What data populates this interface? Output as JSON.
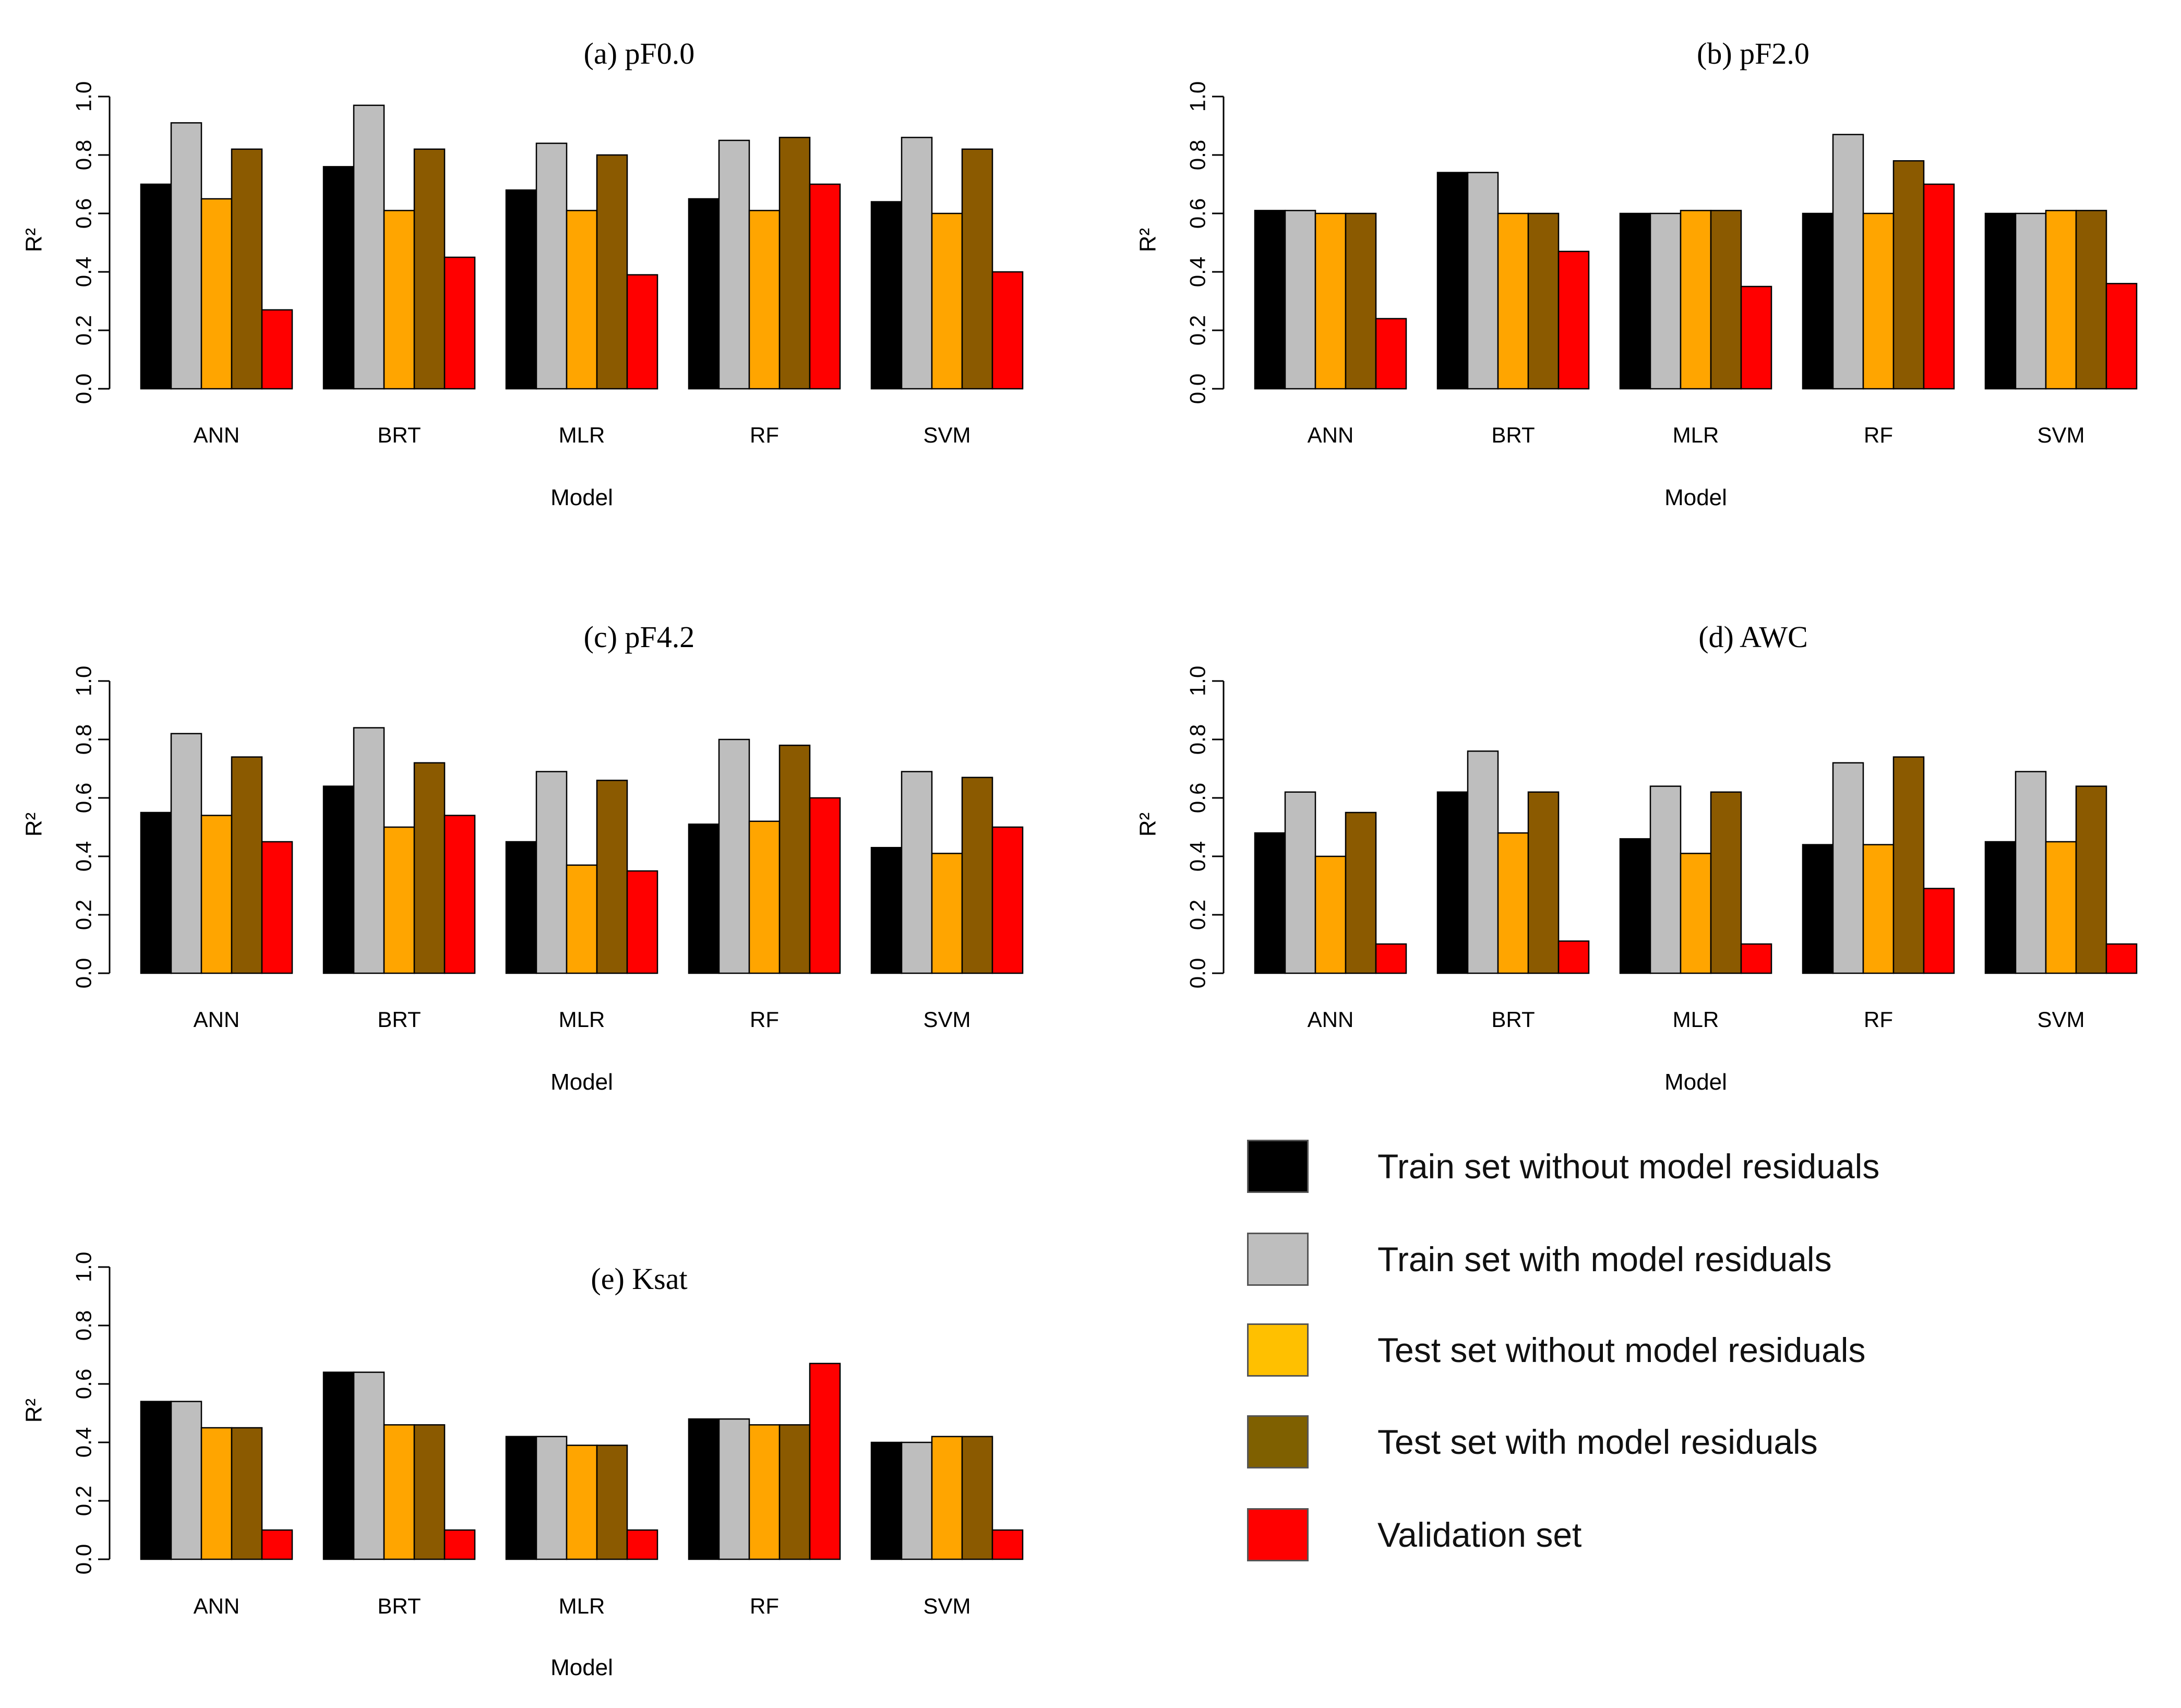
{
  "colors": {
    "train_without": "#000000",
    "train_with": "#bebebe",
    "test_without": "#ffa500",
    "test_with": "#8b5a00",
    "validation": "#ff0000"
  },
  "legend": {
    "items": [
      {
        "label": "Train set without model residuals",
        "color": "#000000"
      },
      {
        "label": "Train set with model residuals",
        "color": "#bebebe"
      },
      {
        "label": "Test set without model residuals",
        "color": "#ffc000"
      },
      {
        "label": "Test set with model residuals",
        "color": "#7f6000"
      },
      {
        "label": "Validation set",
        "color": "#ff0000"
      }
    ]
  },
  "chart_data": [
    {
      "type": "bar",
      "title": "(a)  pF0.0",
      "xlabel": "Model",
      "ylabel": "R²",
      "ylim": [
        0,
        1
      ],
      "yticks": [
        "0.0",
        "0.2",
        "0.4",
        "0.6",
        "0.8",
        "1.0"
      ],
      "categories": [
        "ANN",
        "BRT",
        "MLR",
        "RF",
        "SVM"
      ],
      "series": [
        {
          "name": "Train set without model residuals",
          "values": [
            0.7,
            0.76,
            0.68,
            0.65,
            0.64
          ]
        },
        {
          "name": "Train set with model residuals",
          "values": [
            0.91,
            0.97,
            0.84,
            0.85,
            0.86
          ]
        },
        {
          "name": "Test set without model residuals",
          "values": [
            0.65,
            0.61,
            0.61,
            0.61,
            0.6
          ]
        },
        {
          "name": "Test set with model residuals",
          "values": [
            0.82,
            0.82,
            0.8,
            0.86,
            0.82
          ]
        },
        {
          "name": "Validation set",
          "values": [
            0.27,
            0.45,
            0.39,
            0.7,
            0.4
          ]
        }
      ]
    },
    {
      "type": "bar",
      "title": "(b)  pF2.0",
      "xlabel": "Model",
      "ylabel": "R²",
      "ylim": [
        0,
        1
      ],
      "yticks": [
        "0.0",
        "0.2",
        "0.4",
        "0.6",
        "0.8",
        "1.0"
      ],
      "categories": [
        "ANN",
        "BRT",
        "MLR",
        "RF",
        "SVM"
      ],
      "series": [
        {
          "name": "Train set without model residuals",
          "values": [
            0.61,
            0.74,
            0.6,
            0.6,
            0.6
          ]
        },
        {
          "name": "Train set with model residuals",
          "values": [
            0.61,
            0.74,
            0.6,
            0.87,
            0.6
          ]
        },
        {
          "name": "Test set without model residuals",
          "values": [
            0.6,
            0.6,
            0.61,
            0.6,
            0.61
          ]
        },
        {
          "name": "Test set with model residuals",
          "values": [
            0.6,
            0.6,
            0.61,
            0.78,
            0.61
          ]
        },
        {
          "name": "Validation set",
          "values": [
            0.24,
            0.47,
            0.35,
            0.7,
            0.36
          ]
        }
      ]
    },
    {
      "type": "bar",
      "title": "(c)  pF4.2",
      "xlabel": "Model",
      "ylabel": "R²",
      "ylim": [
        0,
        1
      ],
      "yticks": [
        "0.0",
        "0.2",
        "0.4",
        "0.6",
        "0.8",
        "1.0"
      ],
      "categories": [
        "ANN",
        "BRT",
        "MLR",
        "RF",
        "SVM"
      ],
      "series": [
        {
          "name": "Train set without model residuals",
          "values": [
            0.55,
            0.64,
            0.45,
            0.51,
            0.43
          ]
        },
        {
          "name": "Train set with model residuals",
          "values": [
            0.82,
            0.84,
            0.69,
            0.8,
            0.69
          ]
        },
        {
          "name": "Test set without model residuals",
          "values": [
            0.54,
            0.5,
            0.37,
            0.52,
            0.41
          ]
        },
        {
          "name": "Test set with model residuals",
          "values": [
            0.74,
            0.72,
            0.66,
            0.78,
            0.67
          ]
        },
        {
          "name": "Validation set",
          "values": [
            0.45,
            0.54,
            0.35,
            0.6,
            0.5
          ]
        }
      ]
    },
    {
      "type": "bar",
      "title": "(d)  AWC",
      "xlabel": "Model",
      "ylabel": "R²",
      "ylim": [
        0,
        1
      ],
      "yticks": [
        "0.0",
        "0.2",
        "0.4",
        "0.6",
        "0.8",
        "1.0"
      ],
      "categories": [
        "ANN",
        "BRT",
        "MLR",
        "RF",
        "SVM"
      ],
      "series": [
        {
          "name": "Train set without model residuals",
          "values": [
            0.48,
            0.62,
            0.46,
            0.44,
            0.45
          ]
        },
        {
          "name": "Train set with model residuals",
          "values": [
            0.62,
            0.76,
            0.64,
            0.72,
            0.69
          ]
        },
        {
          "name": "Test set without model residuals",
          "values": [
            0.4,
            0.48,
            0.41,
            0.44,
            0.45
          ]
        },
        {
          "name": "Test set with model residuals",
          "values": [
            0.55,
            0.62,
            0.62,
            0.74,
            0.64
          ]
        },
        {
          "name": "Validation set",
          "values": [
            0.1,
            0.11,
            0.1,
            0.29,
            0.1
          ]
        }
      ]
    },
    {
      "type": "bar",
      "title": "(e)  Ksat",
      "xlabel": "Model",
      "ylabel": "R²",
      "ylim": [
        0,
        1
      ],
      "yticks": [
        "0.0",
        "0.2",
        "0.4",
        "0.6",
        "0.8",
        "1.0"
      ],
      "categories": [
        "ANN",
        "BRT",
        "MLR",
        "RF",
        "SVM"
      ],
      "series": [
        {
          "name": "Train set without model residuals",
          "values": [
            0.54,
            0.64,
            0.42,
            0.48,
            0.4
          ]
        },
        {
          "name": "Train set with model residuals",
          "values": [
            0.54,
            0.64,
            0.42,
            0.48,
            0.4
          ]
        },
        {
          "name": "Test set without model residuals",
          "values": [
            0.45,
            0.46,
            0.39,
            0.46,
            0.42
          ]
        },
        {
          "name": "Test set with model residuals",
          "values": [
            0.45,
            0.46,
            0.39,
            0.46,
            0.42
          ]
        },
        {
          "name": "Validation set",
          "values": [
            0.1,
            0.1,
            0.1,
            0.67,
            0.1
          ]
        }
      ]
    }
  ]
}
